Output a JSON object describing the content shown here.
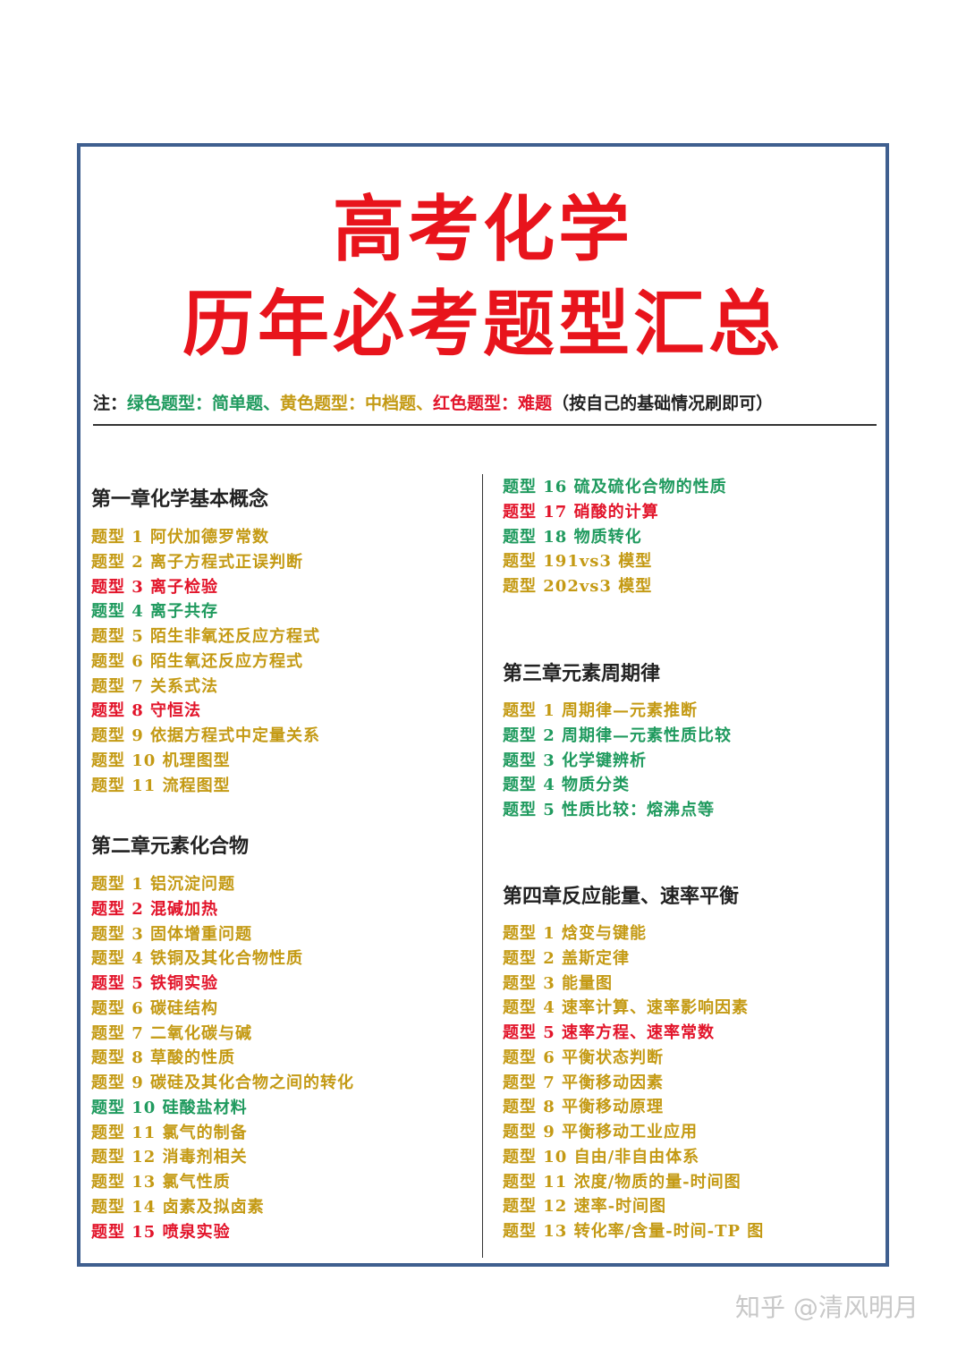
{
  "title": {
    "line1": "高考化学",
    "line2": "历年必考题型汇总"
  },
  "note": {
    "prefix": "注：",
    "green": "绿色题型：简单题、",
    "yellow": "黄色题型：中档题、",
    "red": "红色题型：难题",
    "suffix": "（按自己的基础情况刷即可）"
  },
  "colors": {
    "green": "#1f9a5e",
    "yellow": "#c49a14",
    "red": "#e2142a",
    "frame": "#3f5f8f"
  },
  "chapters": [
    {
      "title": "第一章化学基本概念",
      "items": [
        {
          "text": "题型 1 阿伏加德罗常数",
          "level": "yellow"
        },
        {
          "text": "题型 2 离子方程式正误判断",
          "level": "yellow"
        },
        {
          "text": "题型 3 离子检验",
          "level": "red"
        },
        {
          "text": "题型 4 离子共存",
          "level": "green"
        },
        {
          "text": "题型 5 陌生非氧还反应方程式",
          "level": "yellow"
        },
        {
          "text": "题型 6 陌生氧还反应方程式",
          "level": "yellow"
        },
        {
          "text": "题型 7 关系式法",
          "level": "yellow"
        },
        {
          "text": "题型 8 守恒法",
          "level": "red"
        },
        {
          "text": "题型 9 依据方程式中定量关系",
          "level": "yellow"
        },
        {
          "text": "题型 10 机理图型",
          "level": "yellow"
        },
        {
          "text": "题型 11 流程图型",
          "level": "yellow"
        }
      ]
    },
    {
      "title": "第二章元素化合物",
      "items": [
        {
          "text": "题型 1 铝沉淀问题",
          "level": "yellow"
        },
        {
          "text": "题型 2 混碱加热",
          "level": "red"
        },
        {
          "text": "题型 3 固体增重问题",
          "level": "yellow"
        },
        {
          "text": "题型 4 铁铜及其化合物性质",
          "level": "yellow"
        },
        {
          "text": "题型 5 铁铜实验",
          "level": "red"
        },
        {
          "text": "题型 6 碳硅结构",
          "level": "yellow"
        },
        {
          "text": "题型 7 二氧化碳与碱",
          "level": "yellow"
        },
        {
          "text": "题型 8 草酸的性质",
          "level": "yellow"
        },
        {
          "text": "题型 9 碳硅及其化合物之间的转化",
          "level": "yellow"
        },
        {
          "text": "题型 10 硅酸盐材料",
          "level": "green"
        },
        {
          "text": "题型 11 氯气的制备",
          "level": "yellow"
        },
        {
          "text": "题型 12 消毒剂相关",
          "level": "yellow"
        },
        {
          "text": "题型 13 氯气性质",
          "level": "yellow"
        },
        {
          "text": "题型 14 卤素及拟卤素",
          "level": "yellow"
        },
        {
          "text": "题型 15 喷泉实验",
          "level": "red"
        },
        {
          "text": "题型 16 硫及硫化合物的性质",
          "level": "green"
        },
        {
          "text": "题型 17 硝酸的计算",
          "level": "red"
        },
        {
          "text": "题型 18 物质转化",
          "level": "green"
        },
        {
          "text": "题型 191vs3 模型",
          "level": "yellow"
        },
        {
          "text": "题型 202vs3 模型",
          "level": "yellow"
        }
      ]
    },
    {
      "title": "第三章元素周期律",
      "items": [
        {
          "text": "题型 1 周期律—元素推断",
          "level": "yellow"
        },
        {
          "text": "题型 2 周期律—元素性质比较",
          "level": "green"
        },
        {
          "text": "题型 3 化学键辨析",
          "level": "green"
        },
        {
          "text": "题型 4 物质分类",
          "level": "green"
        },
        {
          "text": "题型 5 性质比较：熔沸点等",
          "level": "green"
        }
      ]
    },
    {
      "title": "第四章反应能量、速率平衡",
      "items": [
        {
          "text": "题型 1 焓变与键能",
          "level": "yellow"
        },
        {
          "text": "题型 2 盖斯定律",
          "level": "yellow"
        },
        {
          "text": "题型 3 能量图",
          "level": "yellow"
        },
        {
          "text": "题型 4 速率计算、速率影响因素",
          "level": "yellow"
        },
        {
          "text": "题型 5 速率方程、速率常数",
          "level": "red"
        },
        {
          "text": "题型 6 平衡状态判断",
          "level": "yellow"
        },
        {
          "text": "题型 7 平衡移动因素",
          "level": "yellow"
        },
        {
          "text": "题型 8 平衡移动原理",
          "level": "yellow"
        },
        {
          "text": "题型 9 平衡移动工业应用",
          "level": "yellow"
        },
        {
          "text": "题型 10 自由/非自由体系",
          "level": "yellow"
        },
        {
          "text": "题型 11 浓度/物质的量-时间图",
          "level": "yellow"
        },
        {
          "text": "题型 12 速率-时间图",
          "level": "yellow"
        },
        {
          "text": "题型 13 转化率/含量-时间-TP 图",
          "level": "yellow"
        }
      ]
    }
  ],
  "watermark": "知乎 @清风明月"
}
